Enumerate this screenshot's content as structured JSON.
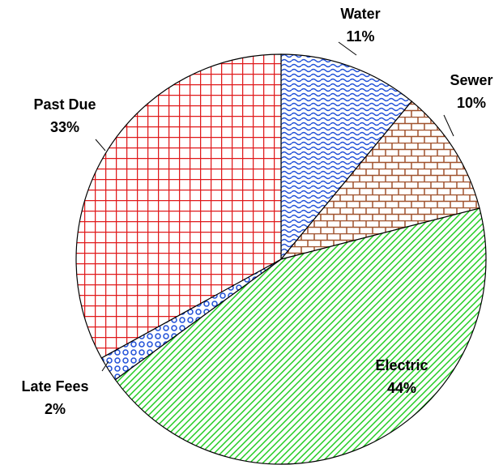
{
  "chart_data": {
    "type": "pie",
    "categories": [
      "Water",
      "Sewer",
      "Electric",
      "Late Fees",
      "Past Due"
    ],
    "values": [
      11,
      10,
      44,
      2,
      33
    ],
    "value_labels": [
      "11%",
      "10%",
      "44%",
      "2%",
      "33%"
    ],
    "colors": [
      "#1f4fd8",
      "#a0522d",
      "#22cc22",
      "#1f4fd8",
      "#e0191b"
    ]
  }
}
